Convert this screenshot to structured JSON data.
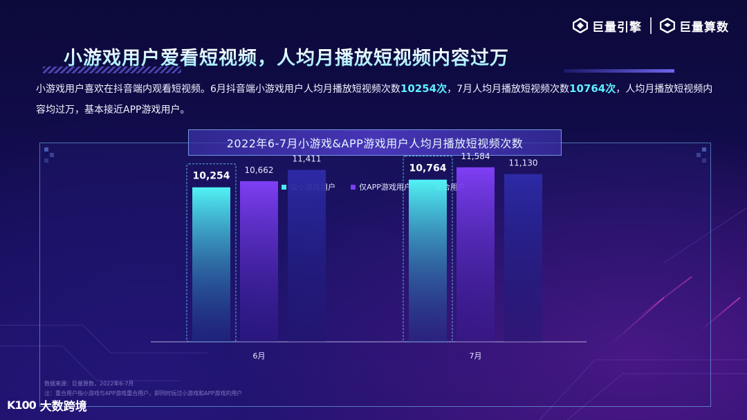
{
  "header": {
    "logos": [
      {
        "name": "巨量引擎"
      },
      {
        "name": "巨量算数"
      }
    ]
  },
  "title": "小游戏用户爱看短视频，人均月播放短视频内容过万",
  "description": {
    "part1": "小游戏用户喜欢在抖音端内观看短视频。6月抖音端小游戏用户人均月播放短视频次数",
    "hl1": "10254次",
    "part2": "，7月人均月播放短视频次数",
    "hl2": "10764次",
    "part3": "，人均月播放短视频内容均过万，基本接近APP游戏用户。"
  },
  "chart_data": {
    "type": "bar",
    "title": "2022年6-7月小游戏&APP游戏用户人均月播放短视频次数",
    "categories": [
      "6月",
      "7月"
    ],
    "series": [
      {
        "name": "仅小游戏用户",
        "values": [
          10254,
          10764
        ],
        "labels": [
          "10,254",
          "10,764"
        ],
        "color": "#4de8f0",
        "highlight": true
      },
      {
        "name": "仅APP游戏用户",
        "values": [
          10662,
          11584
        ],
        "labels": [
          "10,662",
          "11,584"
        ],
        "color": "#7a3ff0"
      },
      {
        "name": "重合用户",
        "values": [
          11411,
          11130
        ],
        "labels": [
          "11,411",
          "11,130"
        ],
        "color": "#2c2aa8"
      }
    ],
    "legend_position": "top-center",
    "grid": false
  },
  "source": {
    "line1": "数据来源：巨量算数，2022年6-7月",
    "line2": "注：重合用户指小游戏与APP游戏重合用户，即同时玩过小游戏和APP游戏的用户"
  },
  "footer_brand": {
    "mark": "K100",
    "name": "大数跨境"
  }
}
